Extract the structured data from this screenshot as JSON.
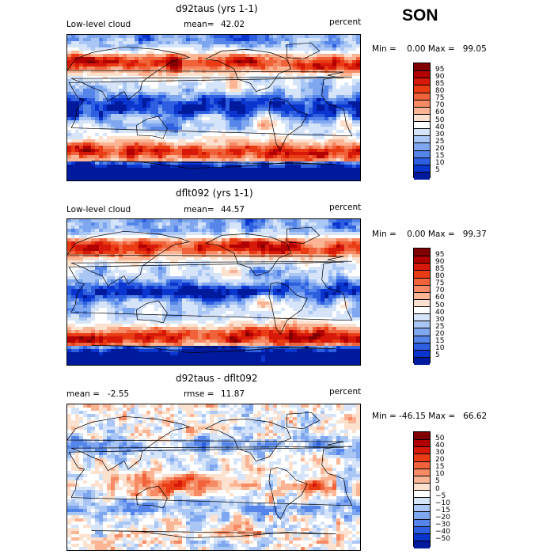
{
  "season": "SON",
  "panels": [
    {
      "title": "d92taus (yrs 1-1)",
      "left_label": "Low-level cloud",
      "mean_label": "mean=",
      "mean_value": "42.02",
      "units": "percent",
      "minmax": "Min =    0.00 Max =   99.05",
      "scale_type": "abs",
      "colorbar_labels": [
        "95",
        "90",
        "85",
        "80",
        "75",
        "70",
        "60",
        "50",
        "40",
        "30",
        "25",
        "20",
        "15",
        "10",
        "5"
      ],
      "colorbar_colors": [
        "#7f0000",
        "#b20000",
        "#d7190a",
        "#e93c14",
        "#f0623a",
        "#f58a64",
        "#fbb594",
        "#fde1cf",
        "#ffffff",
        "#d6e4fa",
        "#a9c6f5",
        "#7ea7ef",
        "#5585e8",
        "#2e5fe0",
        "#0b35cf",
        "#001a9e"
      ]
    },
    {
      "title": "dflt092 (yrs 1-1)",
      "left_label": "Low-level cloud",
      "mean_label": "mean=",
      "mean_value": "44.57",
      "units": "percent",
      "minmax": "Min =    0.00 Max =   99.37",
      "scale_type": "abs",
      "colorbar_labels": [
        "95",
        "90",
        "85",
        "80",
        "75",
        "70",
        "60",
        "50",
        "40",
        "30",
        "25",
        "20",
        "15",
        "10",
        "5"
      ],
      "colorbar_colors": [
        "#7f0000",
        "#b20000",
        "#d7190a",
        "#e93c14",
        "#f0623a",
        "#f58a64",
        "#fbb594",
        "#fde1cf",
        "#ffffff",
        "#d6e4fa",
        "#a9c6f5",
        "#7ea7ef",
        "#5585e8",
        "#2e5fe0",
        "#0b35cf",
        "#001a9e"
      ]
    },
    {
      "title": "d92taus - dflt092",
      "left_label": "mean =   -2.55",
      "mean_label": "rmse =",
      "mean_value": "11.87",
      "units": "percent",
      "minmax": "Min = -46.15 Max =   66.62",
      "scale_type": "diff",
      "colorbar_labels": [
        "50",
        "40",
        "30",
        "20",
        "15",
        "10",
        "5",
        "0",
        "−5",
        "−10",
        "−15",
        "−20",
        "−30",
        "−40",
        "−50"
      ],
      "colorbar_colors": [
        "#7f0000",
        "#b20000",
        "#d7190a",
        "#e93c14",
        "#f0623a",
        "#f58a64",
        "#fbb594",
        "#fde1cf",
        "#ffffff",
        "#d6e4fa",
        "#a9c6f5",
        "#7ea7ef",
        "#5585e8",
        "#2e5fe0",
        "#0b35cf",
        "#001a9e"
      ]
    }
  ]
}
